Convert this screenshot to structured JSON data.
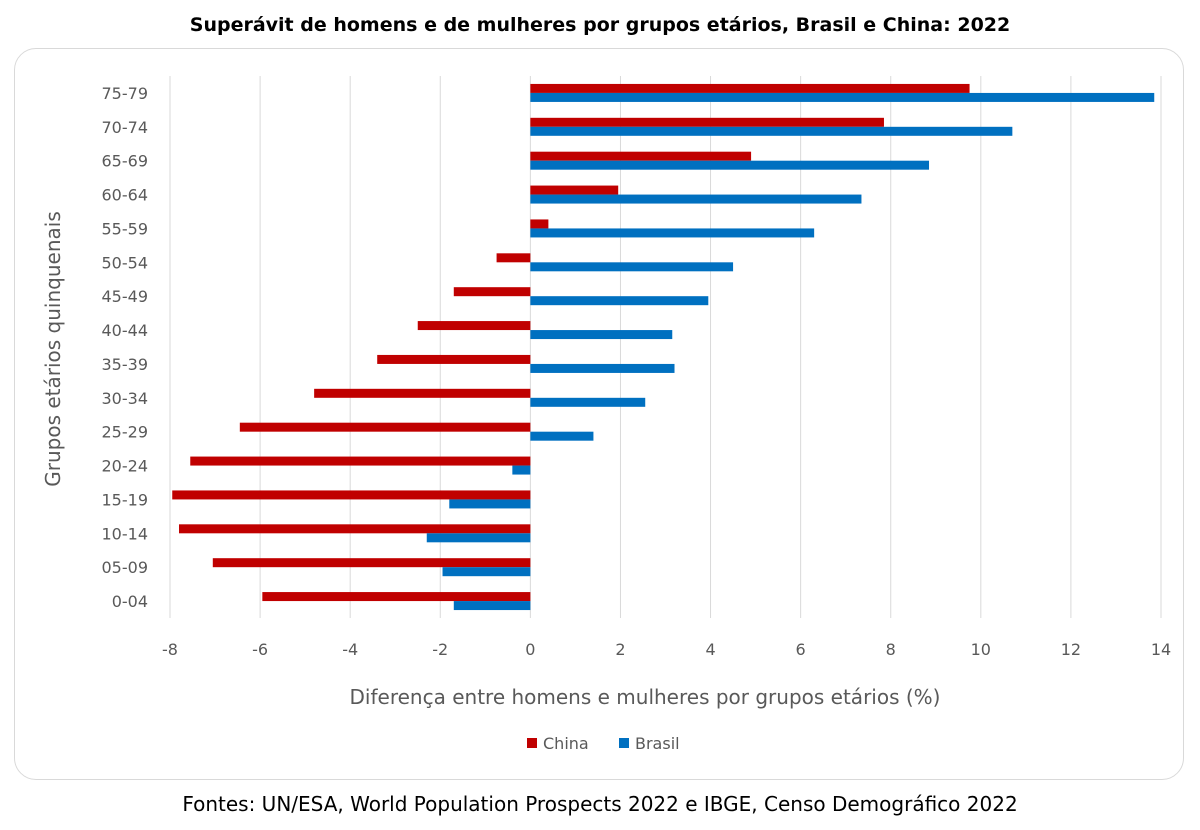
{
  "chart_data": {
    "type": "bar",
    "orientation": "horizontal",
    "title": "Superávit de homens e de mulheres por grupos etários, Brasil e China: 2022",
    "xlabel": "Diferença entre homens e mulheres por grupos etários (%)",
    "ylabel": "Grupos etários quinquenais",
    "xlim": [
      -8,
      14
    ],
    "xticks": [
      -8,
      -6,
      -4,
      -2,
      0,
      2,
      4,
      6,
      8,
      10,
      12,
      14
    ],
    "grid": "vertical",
    "legend_position": "bottom",
    "categories": [
      "0-04",
      "05-09",
      "10-14",
      "15-19",
      "20-24",
      "25-29",
      "30-34",
      "35-39",
      "40-44",
      "45-49",
      "50-54",
      "55-59",
      "60-64",
      "65-69",
      "70-74",
      "75-79"
    ],
    "series": [
      {
        "name": "China",
        "color": "#c00000",
        "values": [
          -5.95,
          -7.05,
          -7.8,
          -7.95,
          -7.55,
          -6.45,
          -4.8,
          -3.4,
          -2.5,
          -1.7,
          -0.75,
          0.4,
          1.95,
          4.9,
          7.85,
          9.75
        ]
      },
      {
        "name": "Brasil",
        "color": "#0070c0",
        "values": [
          -1.7,
          -1.95,
          -2.3,
          -1.8,
          -0.4,
          1.4,
          2.55,
          3.2,
          3.15,
          3.95,
          4.5,
          6.3,
          7.35,
          8.85,
          10.7,
          13.85
        ]
      }
    ]
  },
  "footer": "Fontes: UN/ESA, World Population Prospects 2022 e IBGE, Censo Demográfico 2022"
}
